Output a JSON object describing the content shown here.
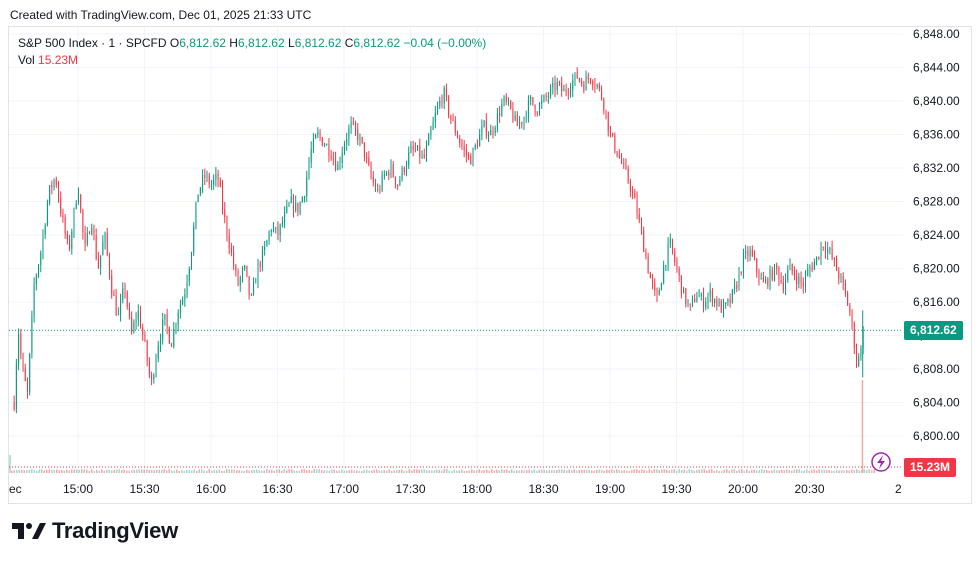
{
  "header": {
    "created_text": "Created with TradingView.com, Dec 01, 2025 21:33 UTC"
  },
  "legend": {
    "symbol": "S&P 500 Index · 1 · SPCFD",
    "o_label": "O",
    "o_value": "6,812.62",
    "h_label": "H",
    "h_value": "6,812.62",
    "l_label": "L",
    "l_value": "6,812.62",
    "c_label": "C",
    "c_value": "6,812.62",
    "change": "−0.04 (−0.00%)",
    "vol_label": "Vol",
    "vol_value": "15.23M"
  },
  "price_tag": {
    "text": "6,812.62",
    "color": "#089981"
  },
  "volume_tag": {
    "text": "15.23M",
    "color": "#f23645"
  },
  "footer": {
    "brand": "TradingView"
  },
  "colors": {
    "up": "#089981",
    "down": "#f23645",
    "grid": "#f0f3fa",
    "axis_text": "#131722"
  },
  "icons": {
    "alert": "lightning-icon"
  },
  "chart_data": {
    "type": "candlestick",
    "interval": "1 minute",
    "ylim": [
      6798,
      6850
    ],
    "y_ticks": [
      "6,800.00",
      "6,804.00",
      "6,808.00",
      "6,812.00",
      "6,816.00",
      "6,820.00",
      "6,824.00",
      "6,828.00",
      "6,832.00",
      "6,836.00",
      "6,840.00",
      "6,844.00",
      "6,848.00"
    ],
    "x_ticks": [
      "ec",
      "15:00",
      "15:30",
      "16:00",
      "16:30",
      "17:00",
      "17:30",
      "18:00",
      "18:30",
      "19:00",
      "19:30",
      "20:00",
      "20:30",
      "2"
    ],
    "last_price": 6812.62,
    "volume_last": "15.23M",
    "price_path": [
      [
        14.52,
        6804
      ],
      [
        14.55,
        6813
      ],
      [
        14.58,
        6808
      ],
      [
        14.62,
        6805
      ],
      [
        14.67,
        6818
      ],
      [
        14.72,
        6822
      ],
      [
        14.78,
        6829
      ],
      [
        14.83,
        6831
      ],
      [
        14.88,
        6826
      ],
      [
        14.93,
        6822
      ],
      [
        15.0,
        6830
      ],
      [
        15.05,
        6822
      ],
      [
        15.1,
        6826
      ],
      [
        15.15,
        6820
      ],
      [
        15.2,
        6824
      ],
      [
        15.25,
        6818
      ],
      [
        15.3,
        6814
      ],
      [
        15.35,
        6818
      ],
      [
        15.4,
        6812
      ],
      [
        15.45,
        6815
      ],
      [
        15.5,
        6811
      ],
      [
        15.55,
        6806
      ],
      [
        15.6,
        6811
      ],
      [
        15.65,
        6814
      ],
      [
        15.7,
        6811
      ],
      [
        15.75,
        6815
      ],
      [
        15.8,
        6817
      ],
      [
        15.85,
        6822
      ],
      [
        15.9,
        6829
      ],
      [
        15.95,
        6831
      ],
      [
        16.0,
        6830
      ],
      [
        16.05,
        6831
      ],
      [
        16.1,
        6826
      ],
      [
        16.15,
        6822
      ],
      [
        16.2,
        6818
      ],
      [
        16.25,
        6820
      ],
      [
        16.3,
        6816
      ],
      [
        16.35,
        6820
      ],
      [
        16.4,
        6822
      ],
      [
        16.45,
        6825
      ],
      [
        16.5,
        6824
      ],
      [
        16.55,
        6826
      ],
      [
        16.6,
        6828
      ],
      [
        16.65,
        6827
      ],
      [
        16.7,
        6829
      ],
      [
        16.75,
        6834
      ],
      [
        16.8,
        6836
      ],
      [
        16.85,
        6835
      ],
      [
        16.9,
        6834
      ],
      [
        16.95,
        6832
      ],
      [
        17.0,
        6835
      ],
      [
        17.05,
        6837
      ],
      [
        17.1,
        6836
      ],
      [
        17.15,
        6834
      ],
      [
        17.2,
        6831
      ],
      [
        17.25,
        6829
      ],
      [
        17.3,
        6831
      ],
      [
        17.35,
        6832
      ],
      [
        17.4,
        6830
      ],
      [
        17.45,
        6832
      ],
      [
        17.5,
        6834
      ],
      [
        17.55,
        6834
      ],
      [
        17.6,
        6833
      ],
      [
        17.65,
        6836
      ],
      [
        17.7,
        6839
      ],
      [
        17.75,
        6841
      ],
      [
        17.8,
        6838
      ],
      [
        17.85,
        6836
      ],
      [
        17.9,
        6834
      ],
      [
        17.95,
        6833
      ],
      [
        18.0,
        6835
      ],
      [
        18.05,
        6837
      ],
      [
        18.1,
        6836
      ],
      [
        18.15,
        6838
      ],
      [
        18.2,
        6840
      ],
      [
        18.25,
        6839
      ],
      [
        18.3,
        6837
      ],
      [
        18.35,
        6838
      ],
      [
        18.4,
        6840
      ],
      [
        18.45,
        6839
      ],
      [
        18.5,
        6840
      ],
      [
        18.55,
        6841
      ],
      [
        18.6,
        6842
      ],
      [
        18.65,
        6841
      ],
      [
        18.7,
        6842
      ],
      [
        18.75,
        6843
      ],
      [
        18.8,
        6842
      ],
      [
        18.85,
        6843
      ],
      [
        18.9,
        6842
      ],
      [
        18.95,
        6840
      ],
      [
        19.0,
        6836
      ],
      [
        19.05,
        6834
      ],
      [
        19.1,
        6832
      ],
      [
        19.15,
        6830
      ],
      [
        19.2,
        6827
      ],
      [
        19.25,
        6823
      ],
      [
        19.3,
        6819
      ],
      [
        19.35,
        6816
      ],
      [
        19.4,
        6820
      ],
      [
        19.45,
        6823
      ],
      [
        19.5,
        6820
      ],
      [
        19.55,
        6817
      ],
      [
        19.6,
        6815
      ],
      [
        19.65,
        6817
      ],
      [
        19.7,
        6816
      ],
      [
        19.75,
        6817
      ],
      [
        19.8,
        6816
      ],
      [
        19.85,
        6815
      ],
      [
        19.9,
        6816
      ],
      [
        19.95,
        6818
      ],
      [
        20.0,
        6821
      ],
      [
        20.05,
        6822
      ],
      [
        20.1,
        6820
      ],
      [
        20.15,
        6818
      ],
      [
        20.2,
        6819
      ],
      [
        20.25,
        6820
      ],
      [
        20.3,
        6818
      ],
      [
        20.35,
        6820
      ],
      [
        20.4,
        6819
      ],
      [
        20.45,
        6818
      ],
      [
        20.5,
        6820
      ],
      [
        20.55,
        6821
      ],
      [
        20.6,
        6823
      ],
      [
        20.65,
        6822
      ],
      [
        20.7,
        6820
      ],
      [
        20.75,
        6818
      ],
      [
        20.8,
        6815
      ],
      [
        20.83,
        6812
      ],
      [
        20.86,
        6808
      ],
      [
        20.9,
        6812.62
      ]
    ]
  }
}
